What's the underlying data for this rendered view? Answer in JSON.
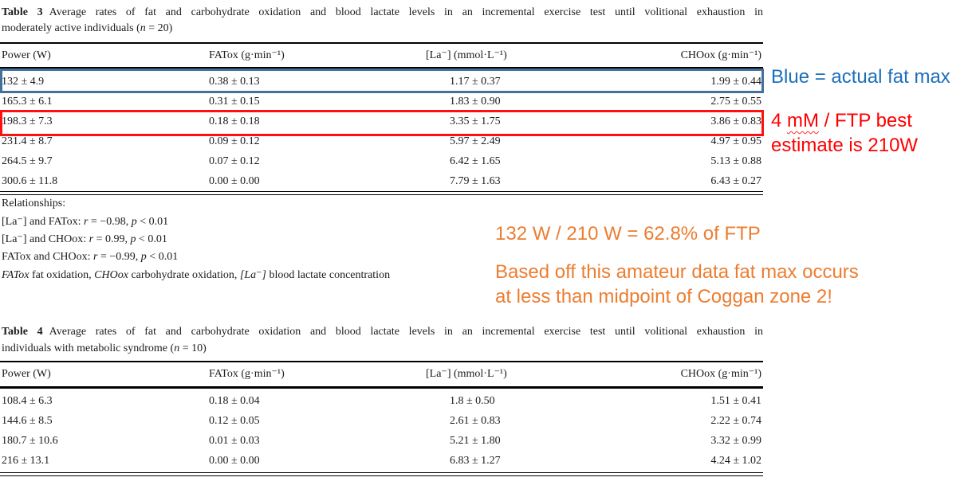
{
  "table3": {
    "caption": {
      "label": "Table 3",
      "line1": "Average rates of fat and carbohydrate oxidation and blood lactate levels in an incremental exercise test until volitional exhaustion in",
      "line2_pre": "moderately active individuals (",
      "n_symbol": "n",
      "line2_post": " = 20)"
    },
    "headers": [
      "Power (W)",
      "FATox (g·min⁻¹)",
      "[La⁻] (mmol·L⁻¹)",
      "CHOox (g·min⁻¹)"
    ],
    "rows": [
      [
        "132 ± 4.9",
        "0.38 ± 0.13",
        "1.17 ± 0.37",
        "1.99 ± 0.44"
      ],
      [
        "165.3 ± 6.1",
        "0.31 ± 0.15",
        "1.83 ± 0.90",
        "2.75 ± 0.55"
      ],
      [
        "198.3 ± 7.3",
        "0.18 ± 0.18",
        "3.35 ± 1.75",
        "3.86 ± 0.83"
      ],
      [
        "231.4 ± 8.7",
        "0.09 ± 0.12",
        "5.97 ± 2.49",
        "4.97 ± 0.95"
      ],
      [
        "264.5 ± 9.7",
        "0.07 ± 0.12",
        "6.42 ± 1.65",
        "5.13 ± 0.88"
      ],
      [
        "300.6 ± 11.8",
        "0.00 ± 0.00",
        "7.79 ± 1.63",
        "6.43 ± 0.27"
      ]
    ],
    "highlighted_blue_row": "132 ± 4.9",
    "highlighted_red_row": "198.3 ± 7.3"
  },
  "relationships": {
    "heading": "Relationships:",
    "lines": [
      {
        "pre": "[La⁻] and FATox: ",
        "r_sym": "r",
        "mid": " = −0.98, ",
        "p_sym": "p",
        "post": " < 0.01"
      },
      {
        "pre": "[La⁻] and CHOox: ",
        "r_sym": "r",
        "mid": " = 0.99, ",
        "p_sym": "p",
        "post": " < 0.01"
      },
      {
        "pre": "FATox and CHOox: ",
        "r_sym": "r",
        "mid": " = −0.99, ",
        "p_sym": "p",
        "post": " < 0.01"
      }
    ],
    "footnote": {
      "it1": "FATox",
      "t1": " fat oxidation, ",
      "it2": "CHOox",
      "t2": " carbohydrate oxidation, ",
      "it3": "[La⁻]",
      "t3": " blood lactate concentration"
    }
  },
  "table4": {
    "caption": {
      "label": "Table 4",
      "line1": "Average rates of fat and carbohydrate oxidation and blood lactate levels in an incremental exercise test until volitional exhaustion in",
      "line2_pre": "individuals with metabolic syndrome (",
      "n_symbol": "n",
      "line2_post": " = 10)"
    },
    "headers": [
      "Power (W)",
      "FATox (g·min⁻¹)",
      "[La⁻] (mmol·L⁻¹)",
      "CHOox (g·min⁻¹)"
    ],
    "rows": [
      [
        "108.4 ± 6.3",
        "0.18 ± 0.04",
        "1.8 ± 0.50",
        "1.51 ± 0.41"
      ],
      [
        "144.6 ± 8.5",
        "0.12 ± 0.05",
        "2.61 ± 0.83",
        "2.22 ± 0.74"
      ],
      [
        "180.7 ± 10.6",
        "0.01 ± 0.03",
        "5.21 ± 1.80",
        "3.32 ± 0.99"
      ],
      [
        "216 ± 13.1",
        "0.00 ± 0.00",
        "6.83 ± 1.27",
        "4.24 ± 1.02"
      ]
    ]
  },
  "annotations": {
    "blue_note": "Blue = actual fat max",
    "red_note_pre": "4 ",
    "red_note_squiggled": "mM",
    "red_note_line1_post": " / FTP best",
    "red_note_line2": "estimate is 210W",
    "orange_calc": "132 W / 210 W = 62.8% of FTP",
    "orange_comment_line1": "Based off this amateur data fat max occurs",
    "orange_comment_line2": "at less than midpoint of Coggan zone 2!",
    "colors": {
      "blue_text": "#1B6FBC",
      "red_text": "#FF0000",
      "orange_text": "#ED7D31",
      "blue_box_border": "#41719C",
      "red_box_border": "#FE1010"
    }
  }
}
